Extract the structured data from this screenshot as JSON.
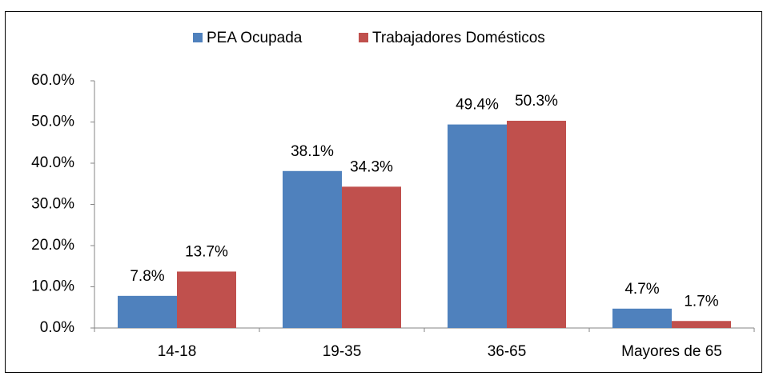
{
  "chart_data": {
    "type": "bar",
    "categories": [
      "14-18",
      "19-35",
      "36-65",
      "Mayores de 65"
    ],
    "series": [
      {
        "name": "PEA Ocupada",
        "color": "#4f81bd",
        "values": [
          7.8,
          38.1,
          49.4,
          4.7
        ],
        "value_labels": [
          "7.8%",
          "38.1%",
          "49.4%",
          "4.7%"
        ]
      },
      {
        "name": "Trabajadores Domésticos",
        "color": "#c0504d",
        "values": [
          13.7,
          34.3,
          50.3,
          1.7
        ],
        "value_labels": [
          "13.7%",
          "34.3%",
          "50.3%",
          "1.7%"
        ]
      }
    ],
    "ylim": [
      0,
      60
    ],
    "yticks": [
      {
        "value": 0,
        "label": "0.0%"
      },
      {
        "value": 10,
        "label": "10.0%"
      },
      {
        "value": 20,
        "label": "20.0%"
      },
      {
        "value": 30,
        "label": "30.0%"
      },
      {
        "value": 40,
        "label": "40.0%"
      },
      {
        "value": 50,
        "label": "50.0%"
      },
      {
        "value": 60,
        "label": "60.0%"
      }
    ],
    "grid": false,
    "legend": "top"
  }
}
